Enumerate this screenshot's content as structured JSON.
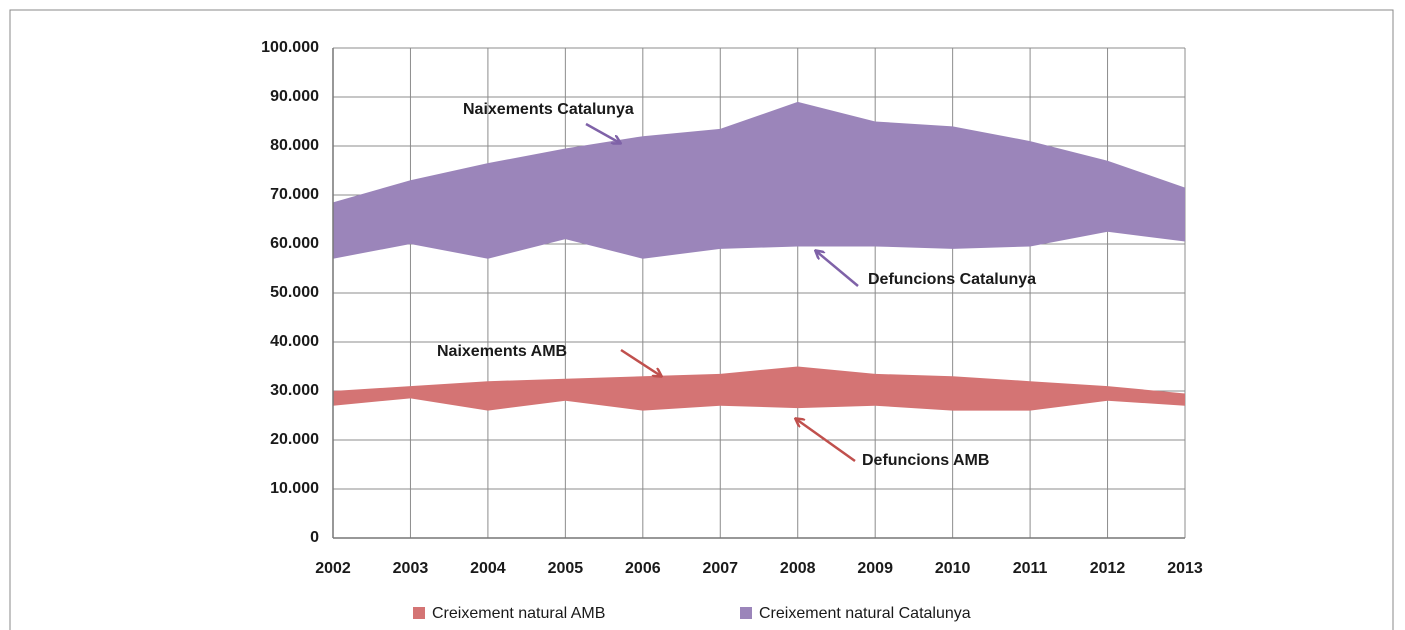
{
  "chart_data": {
    "type": "band",
    "x": [
      2002,
      2003,
      2004,
      2005,
      2006,
      2007,
      2008,
      2009,
      2010,
      2011,
      2012,
      2013
    ],
    "xlim": [
      2002,
      2013
    ],
    "xticks": [
      2002,
      2003,
      2004,
      2005,
      2006,
      2007,
      2008,
      2009,
      2010,
      2011,
      2012,
      2013
    ],
    "ylim": [
      0,
      100000
    ],
    "yticks": [
      0,
      {
        "value": 10000,
        "label": "10.000"
      },
      {
        "value": 20000,
        "label": "20.000"
      },
      {
        "value": 30000,
        "label": "30.000"
      },
      {
        "value": 40000,
        "label": "40.000"
      },
      {
        "value": 50000,
        "label": "50.000"
      },
      {
        "value": 60000,
        "label": "60.000"
      },
      {
        "value": 70000,
        "label": "70.000"
      },
      {
        "value": 80000,
        "label": "80.000"
      },
      {
        "value": 90000,
        "label": "90.000"
      },
      {
        "value": 100000,
        "label": "100.000"
      }
    ],
    "grid": true,
    "legend": "bottom",
    "series": [
      {
        "name": "Creixement natural AMB",
        "color": "#d47474",
        "high": [
          30000,
          31000,
          32000,
          32500,
          33000,
          33500,
          35000,
          33500,
          33000,
          32000,
          31000,
          29500
        ],
        "low": [
          27000,
          28500,
          26000,
          28000,
          26000,
          27000,
          26500,
          27000,
          26000,
          26000,
          28000,
          27000
        ]
      },
      {
        "name": "Creixement natural Catalunya",
        "color": "#9b85ba",
        "high": [
          68500,
          73000,
          76500,
          79500,
          82000,
          83500,
          89000,
          85000,
          84000,
          81000,
          77000,
          71500
        ],
        "low": [
          57000,
          60000,
          57000,
          61000,
          57000,
          59000,
          59500,
          59500,
          59000,
          59500,
          62500,
          60500
        ]
      }
    ],
    "annotations": [
      "Naixements Catalunya",
      "Defuncions Catalunya",
      "Naixements AMB",
      "Defuncions AMB"
    ]
  }
}
